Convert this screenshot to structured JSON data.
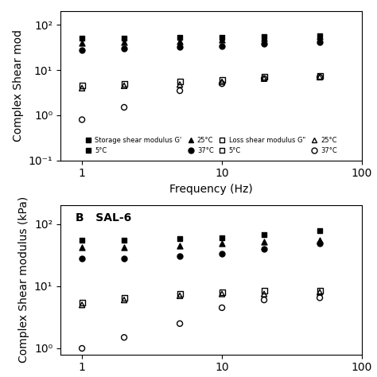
{
  "chart_data": [
    {
      "type": "scatter",
      "xlabel": "Frequency (Hz)",
      "ylabel": "Complex Shear mod",
      "log": true,
      "xlim": [
        0.7,
        100
      ],
      "ylim": [
        0.1,
        200
      ],
      "xticks": [
        1,
        10,
        100
      ],
      "yticks": [
        {
          "value": 0.1,
          "label": "10⁻¹"
        },
        {
          "value": 1,
          "label": "10⁰"
        },
        {
          "value": 10,
          "label": "10¹"
        },
        {
          "value": 100,
          "label": "10²"
        }
      ],
      "color": "black",
      "legend": "lower center",
      "groups": [
        "Storage shear modulus G'",
        "Loss shear modulus G\""
      ],
      "x": [
        1,
        2,
        5,
        10,
        20,
        50
      ],
      "series": [
        {
          "name": "5°C",
          "group": "Storage shear modulus G'",
          "marker": "filled_square",
          "values": [
            50,
            50,
            52,
            53,
            55,
            58
          ]
        },
        {
          "name": "25°C",
          "group": "Storage shear modulus G'",
          "marker": "filled_triangle",
          "values": [
            40,
            42,
            44,
            46,
            50,
            55
          ]
        },
        {
          "name": "37°C",
          "group": "Storage shear modulus G'",
          "marker": "filled_circle",
          "values": [
            28,
            30,
            32,
            34,
            38,
            42
          ]
        },
        {
          "name": "5°C",
          "group": "Loss shear modulus G\"",
          "marker": "open_square",
          "values": [
            4.5,
            5.0,
            5.5,
            6.0,
            7.0,
            7.5
          ]
        },
        {
          "name": "25°C",
          "group": "Loss shear modulus G\"",
          "marker": "open_triangle",
          "values": [
            4.0,
            4.5,
            4.8,
            5.5,
            6.5,
            7.0
          ]
        },
        {
          "name": "37°C",
          "group": "Loss shear modulus G\"",
          "marker": "open_circle",
          "values": [
            0.8,
            1.5,
            3.5,
            5.0,
            6.5,
            7.0
          ]
        }
      ]
    },
    {
      "type": "scatter",
      "ylabel": "Complex Shear modulus (kPa)",
      "annotation": "B   SAL-6",
      "log": true,
      "xlim": [
        0.7,
        100
      ],
      "ylim": [
        0.8,
        200
      ],
      "xticks": [
        1,
        10,
        100
      ],
      "yticks": [
        {
          "value": 1,
          "label": "10⁰"
        },
        {
          "value": 10,
          "label": "10¹"
        },
        {
          "value": 100,
          "label": "10²"
        }
      ],
      "color": "black",
      "x": [
        1,
        2,
        5,
        10,
        20,
        50
      ],
      "series": [
        {
          "marker": "filled_square",
          "values": [
            55,
            55,
            58,
            60,
            68,
            78
          ]
        },
        {
          "marker": "filled_triangle",
          "values": [
            42,
            42,
            45,
            48,
            52,
            55
          ]
        },
        {
          "marker": "filled_circle",
          "values": [
            28,
            28,
            30,
            33,
            40,
            48
          ]
        },
        {
          "marker": "open_square",
          "values": [
            5.5,
            6.5,
            7.5,
            8.0,
            8.5,
            8.5
          ]
        },
        {
          "marker": "open_triangle",
          "values": [
            5.0,
            6.0,
            7.0,
            7.5,
            7.5,
            8.0
          ]
        },
        {
          "marker": "open_circle",
          "values": [
            1.0,
            1.5,
            2.5,
            4.5,
            6.0,
            6.5
          ]
        }
      ]
    }
  ]
}
